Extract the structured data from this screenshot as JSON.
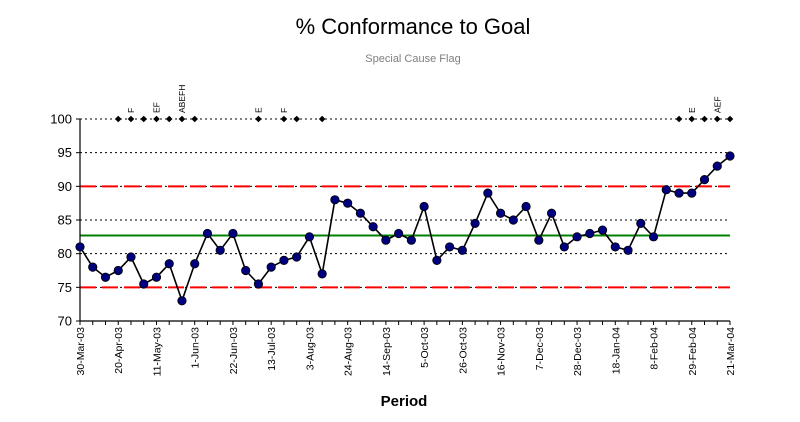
{
  "chart_data": {
    "type": "line",
    "title": "% Conformance to Goal",
    "subtitle": "Special Cause Flag",
    "xlabel": "Period",
    "ylabel": "",
    "ylim": [
      70,
      100
    ],
    "yticks": [
      70,
      75,
      80,
      85,
      90,
      95,
      100
    ],
    "grid": true,
    "x_tick_labels": [
      "30-Mar-03",
      "20-Apr-03",
      "11-May-03",
      "1-Jun-03",
      "22-Jun-03",
      "13-Jul-03",
      "3-Aug-03",
      "24-Aug-03",
      "14-Sep-03",
      "5-Oct-03",
      "26-Oct-03",
      "16-Nov-03",
      "7-Dec-03",
      "28-Dec-03",
      "18-Jan-04",
      "8-Feb-04",
      "29-Feb-04",
      "21-Mar-04"
    ],
    "tick_every": 3,
    "series": [
      {
        "values": [
          81,
          78,
          76.5,
          77.5,
          79.5,
          75.5,
          76.5,
          78.5,
          73,
          78.5,
          83,
          80.5,
          83,
          77.5,
          75.5,
          78,
          79,
          79.5,
          82.5,
          77,
          88,
          87.5,
          86,
          84,
          82,
          83,
          82,
          87,
          79,
          81,
          80.5,
          84.5,
          89,
          86,
          85,
          87,
          82,
          86,
          81,
          82.5,
          83,
          83.5,
          81,
          80.5,
          84.5,
          82.5,
          89.5,
          89,
          89,
          91,
          93,
          94.5
        ],
        "color": "#00007f",
        "marker": "circle"
      }
    ],
    "reference_lines": [
      {
        "value": 82.7,
        "style": "solid",
        "color": "#008000"
      },
      {
        "value": 90,
        "style": "dashed",
        "color": "#ff0000"
      },
      {
        "value": 75,
        "style": "dashed",
        "color": "#ff0000"
      }
    ],
    "special_cause_flags": {
      "y": 100,
      "marker": "diamond",
      "color": "#000000",
      "points": [
        {
          "index": 3,
          "label": ""
        },
        {
          "index": 4,
          "label": "F"
        },
        {
          "index": 5,
          "label": ""
        },
        {
          "index": 6,
          "label": "EF"
        },
        {
          "index": 7,
          "label": ""
        },
        {
          "index": 8,
          "label": "ABEFH"
        },
        {
          "index": 9,
          "label": ""
        },
        {
          "index": 14,
          "label": "E"
        },
        {
          "index": 16,
          "label": "F"
        },
        {
          "index": 17,
          "label": ""
        },
        {
          "index": 19,
          "label": ""
        },
        {
          "index": 47,
          "label": ""
        },
        {
          "index": 48,
          "label": "E"
        },
        {
          "index": 49,
          "label": ""
        },
        {
          "index": 50,
          "label": "AEF"
        },
        {
          "index": 51,
          "label": ""
        }
      ]
    }
  }
}
